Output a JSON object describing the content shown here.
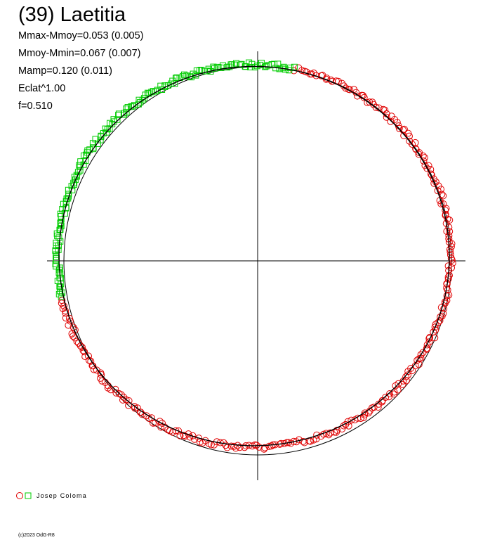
{
  "title": "(39) Laetitia",
  "stats": {
    "line1": "Mmax-Mmoy=0.053 (0.005)",
    "line2": "Mmoy-Mmin=0.067 (0.007)",
    "line3": "Mamp=0.120 (0.011)",
    "line4": "Eclat^1.00",
    "line5": "f=0.510"
  },
  "legend": {
    "observer": "Josep Coloma",
    "marker_colors": {
      "circle": "#e00000",
      "square": "#00cc00"
    }
  },
  "copyright": "(c)2023 OdG-R8",
  "colors": {
    "axes": "#000000",
    "reference_circle": "#000000",
    "fit_curve": "#000000",
    "circle_series": "#e00000",
    "square_series": "#00cc00"
  },
  "chart_data": {
    "type": "scatter",
    "projection": "polar",
    "description_of_axes": "polar light curve; angle = rotational phase, radius = brightness",
    "phase_range": [
      0,
      1
    ],
    "reference_radius": 1.0,
    "series": [
      {
        "marker": "circle",
        "color": "#e00000",
        "phase_range": [
          0.03,
          0.72
        ],
        "amplitude_mag": 0.12
      },
      {
        "marker": "square",
        "color": "#00cc00",
        "phase_range": [
          0.72,
          1.03
        ],
        "amplitude_mag": 0.12
      }
    ],
    "fit": {
      "Mmax_minus_Mmoy": 0.053,
      "Mmoy_minus_Mmin": 0.067,
      "Mamp": 0.12,
      "f": 0.51
    }
  }
}
